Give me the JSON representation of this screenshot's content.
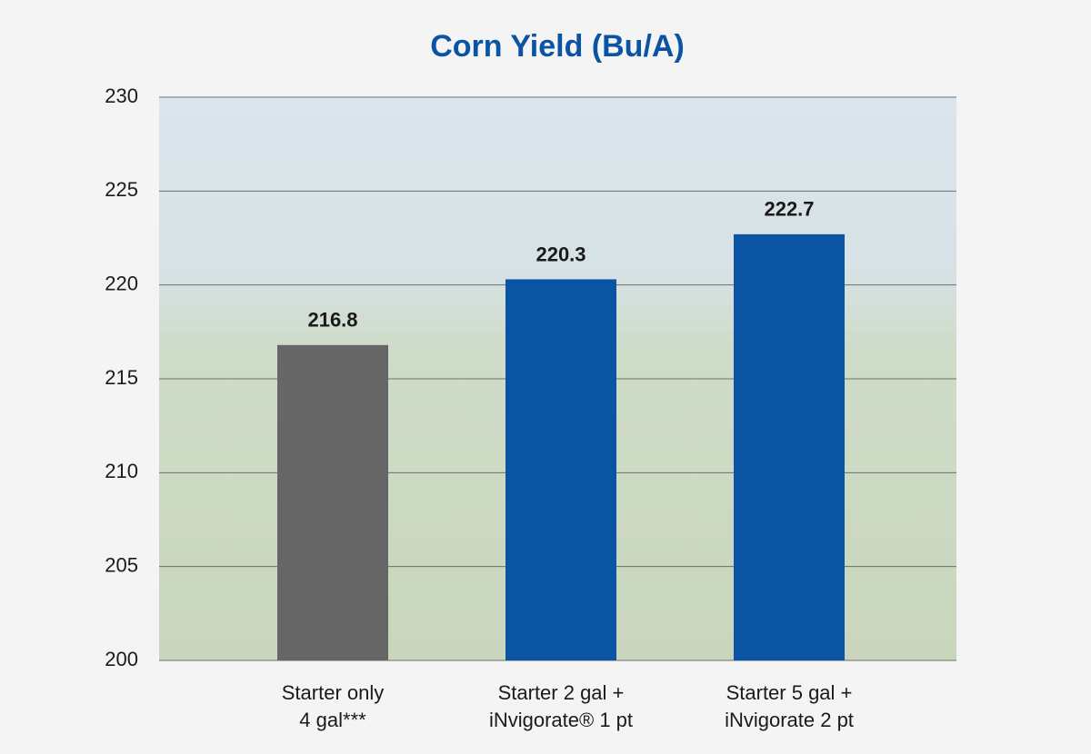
{
  "chart_data": {
    "type": "bar",
    "title": "Corn Yield (Bu/A)",
    "categories": [
      [
        "Starter only",
        "4 gal***"
      ],
      [
        "Starter 2 gal +",
        "iNvigorate® 1 pt"
      ],
      [
        "Starter 5 gal +",
        "iNvigorate 2 pt"
      ]
    ],
    "values": [
      216.8,
      220.3,
      222.7
    ],
    "colors": [
      "#666666",
      "#0b53a3",
      "#0b53a3"
    ],
    "ylim": [
      200,
      230
    ],
    "yticks": [
      200,
      205,
      210,
      215,
      220,
      225,
      230
    ],
    "grid": true
  }
}
